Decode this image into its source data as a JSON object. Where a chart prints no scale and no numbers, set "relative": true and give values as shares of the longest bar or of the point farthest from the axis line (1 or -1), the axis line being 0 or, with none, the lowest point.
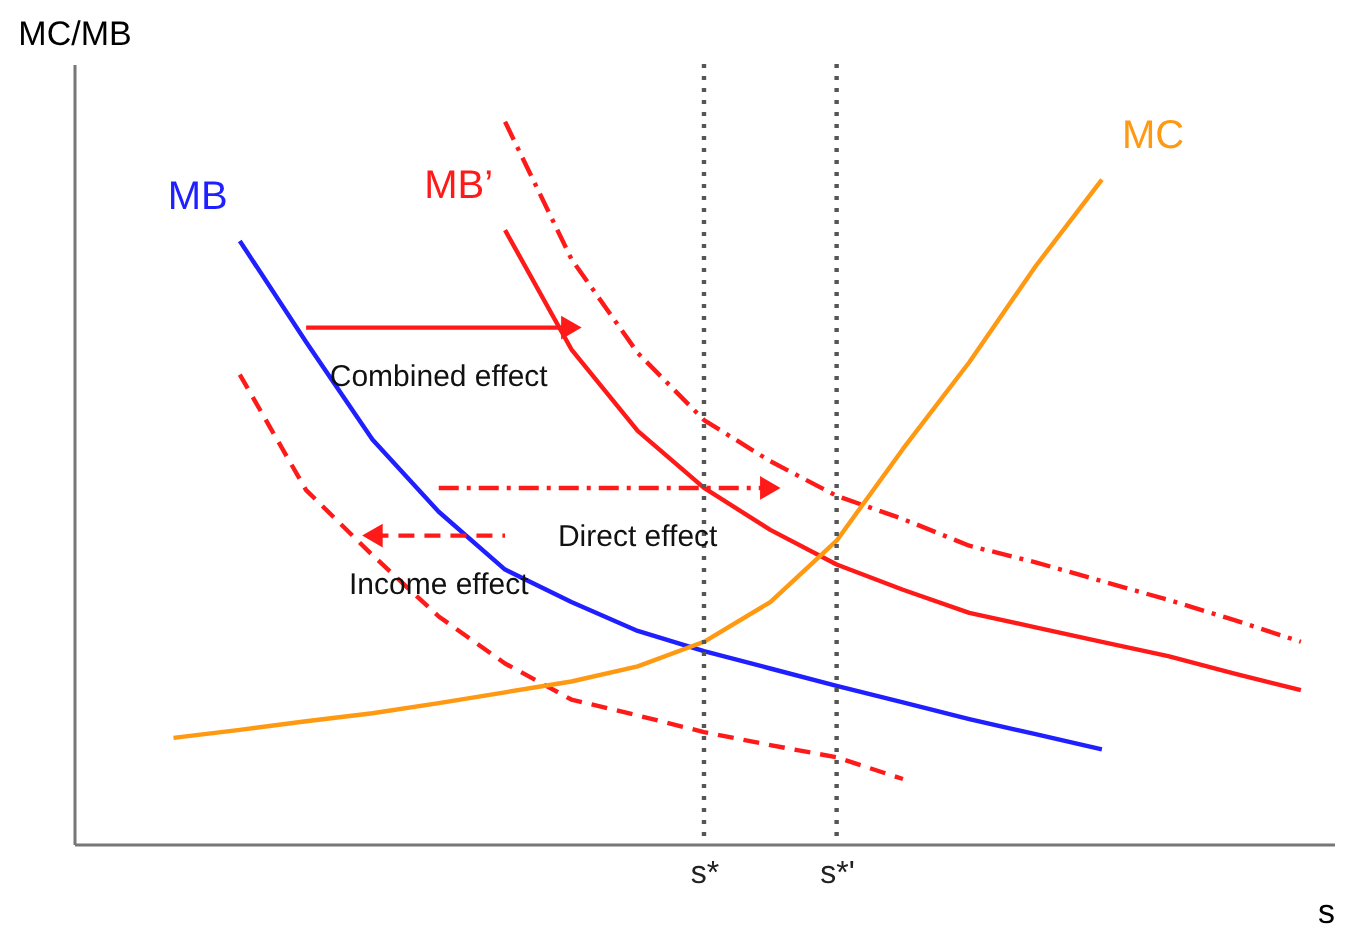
{
  "chart_data": {
    "type": "line",
    "relative": true,
    "xlabel": "s",
    "ylabel": "MC/MB",
    "tick_labels": "x",
    "grid": false,
    "categories": [
      null,
      null,
      null,
      null,
      null,
      null,
      null,
      null,
      null,
      "s*",
      null,
      "s*'",
      null,
      null,
      null,
      null,
      null,
      null,
      null
    ],
    "series": [
      {
        "name": "MB",
        "color": "#1f1fff",
        "line_style": "solid",
        "values": [
          null,
          null,
          0.835,
          0.695,
          0.56,
          0.46,
          0.38,
          0.335,
          0.295,
          0.267,
          0.243,
          0.219,
          0.196,
          0.173,
          0.152,
          0.131,
          null,
          null,
          null
        ]
      },
      {
        "name": "MB’",
        "color": "#ff1a1a",
        "line_style": "solid",
        "values": [
          null,
          null,
          null,
          null,
          null,
          null,
          0.85,
          0.685,
          0.572,
          0.493,
          0.435,
          0.387,
          0.352,
          0.32,
          0.3,
          0.28,
          0.26,
          0.236,
          0.213
        ]
      },
      {
        "color": "#ff1a1a",
        "line_style": "dashdot",
        "values": [
          null,
          null,
          null,
          null,
          null,
          null,
          1.0,
          0.81,
          0.68,
          0.587,
          0.53,
          0.482,
          0.45,
          0.413,
          0.39,
          0.364,
          0.338,
          0.31,
          0.28
        ]
      },
      {
        "color": "#ff1a1a",
        "line_style": "dashed",
        "values": [
          null,
          null,
          0.65,
          0.49,
          0.4,
          0.315,
          0.25,
          0.2,
          0.178,
          0.155,
          0.137,
          0.12,
          0.09,
          null,
          null,
          null,
          null,
          null,
          null
        ]
      },
      {
        "name": "MC",
        "color": "#ff9912",
        "line_style": "solid",
        "values": [
          null,
          0.147,
          0.158,
          0.17,
          0.181,
          0.195,
          0.21,
          0.225,
          0.246,
          0.28,
          0.335,
          0.42,
          0.547,
          0.667,
          0.8,
          0.92,
          null,
          null,
          null
        ]
      },
      {
        "color": "#ff1a1a",
        "line_style": "solid",
        "marker": "triangle-right",
        "values": [
          null,
          null,
          null,
          0.715,
          null,
          null,
          null,
          0.715,
          null,
          null,
          null,
          null,
          null,
          null,
          null,
          null,
          null,
          null,
          null
        ]
      },
      {
        "color": "#ff1a1a",
        "line_style": "dashdot",
        "marker": "triangle-right",
        "values": [
          null,
          null,
          null,
          null,
          null,
          0.493,
          null,
          null,
          null,
          null,
          0.493,
          null,
          null,
          null,
          null,
          null,
          null,
          null,
          null
        ]
      },
      {
        "color": "#ff1a1a",
        "line_style": "dashed",
        "marker": "triangle-left",
        "values": [
          null,
          null,
          null,
          null,
          0.427,
          null,
          0.427,
          null,
          null,
          null,
          null,
          null,
          null,
          null,
          null,
          null,
          null,
          null,
          null
        ]
      }
    ],
    "ref_lines": [
      {
        "axis": "x",
        "value": "s*",
        "color": "#555555",
        "line_style": "dotted"
      },
      {
        "axis": "x",
        "value": "s*'",
        "color": "#555555",
        "line_style": "dotted"
      }
    ],
    "annotations": [
      "Combined effect",
      "Direct effect",
      "Income effect"
    ]
  }
}
